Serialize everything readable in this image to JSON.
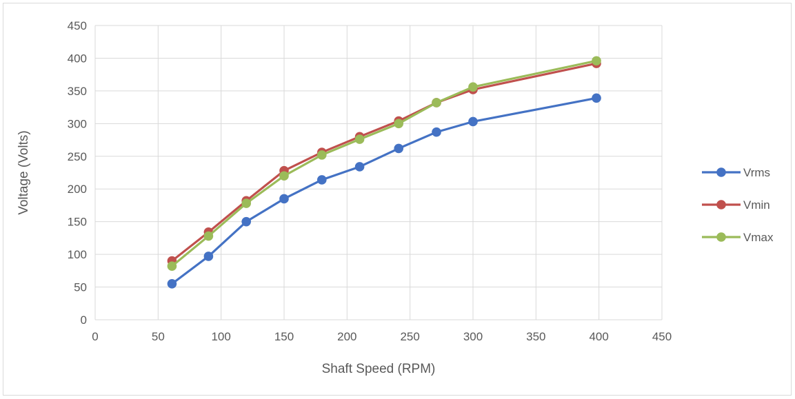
{
  "chart_data": {
    "type": "scatter",
    "title": "",
    "xlabel": "Shaft Speed (RPM)",
    "ylabel": "Voltage (Volts)",
    "xlim": [
      0,
      450
    ],
    "ylim": [
      0,
      450
    ],
    "x_ticks": [
      "0",
      "50",
      "100",
      "150",
      "200",
      "250",
      "300",
      "350",
      "400",
      "450"
    ],
    "y_ticks": [
      "0",
      "50",
      "100",
      "150",
      "200",
      "250",
      "300",
      "350",
      "400",
      "450"
    ],
    "grid": true,
    "legend_position": "right",
    "series": [
      {
        "name": "Vrms",
        "color": "#4472c4",
        "points": [
          [
            61,
            55
          ],
          [
            90,
            97
          ],
          [
            120,
            150
          ],
          [
            150,
            185
          ],
          [
            180,
            214
          ],
          [
            210,
            234
          ],
          [
            241,
            262
          ],
          [
            271,
            287
          ],
          [
            300,
            303
          ],
          [
            398,
            339
          ]
        ]
      },
      {
        "name": "Vmin",
        "color": "#c0504d",
        "points": [
          [
            61,
            90
          ],
          [
            90,
            134
          ],
          [
            120,
            182
          ],
          [
            150,
            228
          ],
          [
            180,
            256
          ],
          [
            210,
            280
          ],
          [
            241,
            304
          ],
          [
            271,
            332
          ],
          [
            300,
            352
          ],
          [
            398,
            392
          ]
        ]
      },
      {
        "name": "Vmax",
        "color": "#9bbb59",
        "points": [
          [
            61,
            82
          ],
          [
            90,
            128
          ],
          [
            120,
            178
          ],
          [
            150,
            220
          ],
          [
            180,
            252
          ],
          [
            210,
            276
          ],
          [
            241,
            300
          ],
          [
            271,
            332
          ],
          [
            300,
            356
          ],
          [
            398,
            396
          ]
        ]
      }
    ]
  }
}
